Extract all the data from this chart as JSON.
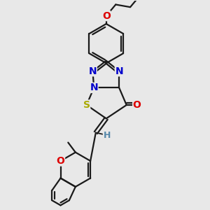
{
  "bg": "#e8e8e8",
  "bc": "#1a1a1a",
  "bw": 1.6,
  "NC": "#0000cc",
  "OC": "#dd0000",
  "SC": "#aaaa00",
  "HC": "#5588aa",
  "fs": 9,
  "xlim": [
    -0.3,
    1.5
  ],
  "ylim": [
    -0.6,
    2.8
  ]
}
